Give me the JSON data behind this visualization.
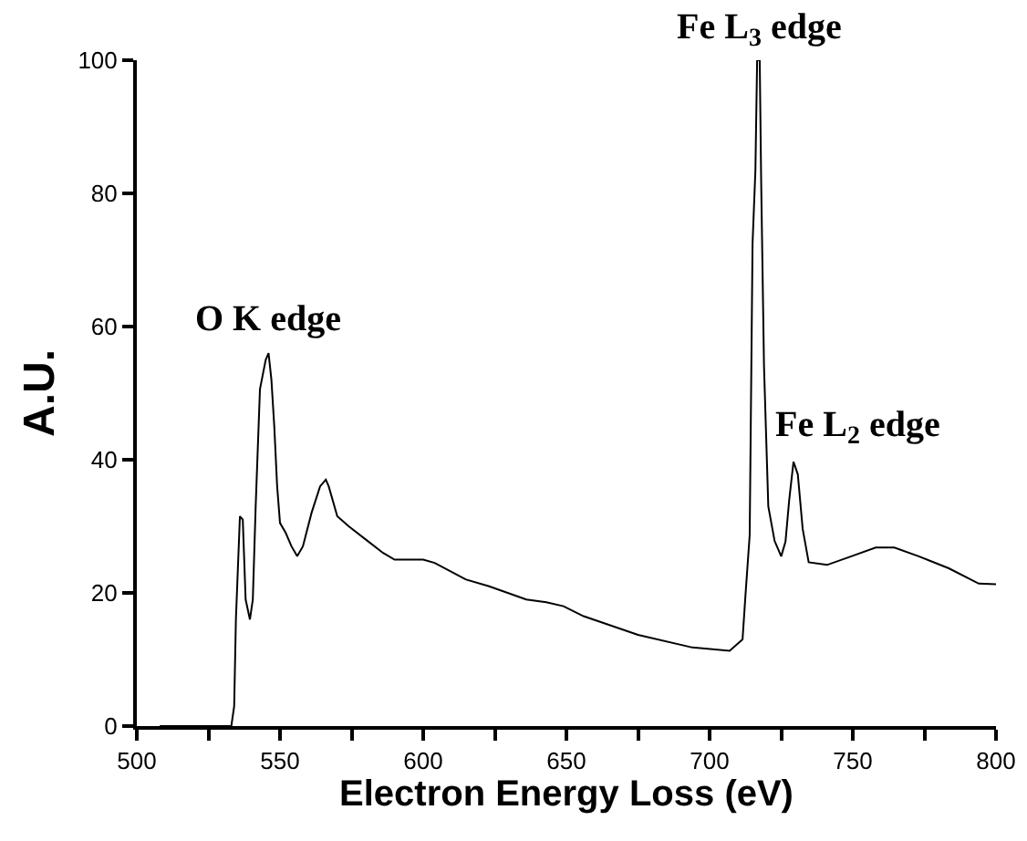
{
  "chart_data": {
    "type": "line",
    "xlabel": "Electron Energy Loss (eV)",
    "ylabel": "A.U.",
    "x": [
      508,
      533,
      534,
      534.6,
      536,
      537,
      538,
      539.5,
      540.5,
      541.5,
      543,
      545,
      546,
      547,
      548,
      549,
      550,
      552,
      554,
      556,
      558,
      561,
      564,
      566,
      567,
      570,
      574,
      580,
      586,
      590,
      600,
      604,
      615,
      623,
      636,
      643,
      649,
      656,
      675,
      694,
      707,
      711.5,
      712.5,
      714,
      715,
      716,
      716.6,
      717.5,
      718,
      719,
      720.5,
      722.7,
      725,
      726.5,
      727.8,
      729.3,
      730.8,
      732.5,
      734.6,
      741,
      749.5,
      758,
      764.5,
      773,
      783.5,
      794,
      800
    ],
    "series": [
      {
        "color": "#000000",
        "values": [
          0,
          0,
          3,
          16,
          31.5,
          31,
          19,
          16,
          19,
          33,
          50.6,
          55,
          56,
          52,
          45,
          36,
          30.5,
          29,
          27,
          25.5,
          27,
          32,
          36,
          37,
          36,
          31.5,
          30,
          28,
          26,
          25,
          25,
          24.5,
          22,
          21,
          19,
          18.6,
          18,
          16.5,
          13.7,
          11.8,
          11.3,
          13,
          19.5,
          28.7,
          72.5,
          83.5,
          100,
          100,
          82,
          54,
          33,
          27.8,
          25.5,
          27.7,
          34,
          39.7,
          37.8,
          29.6,
          24.6,
          24.2,
          25.5,
          26.8,
          26.8,
          25.5,
          23.7,
          21.4,
          21.3
        ]
      }
    ],
    "xlim": [
      500,
      800
    ],
    "xticks": [
      500,
      {
        "value": 525,
        "label": null
      },
      550,
      {
        "value": 575,
        "label": null
      },
      600,
      {
        "value": 625,
        "label": null
      },
      650,
      {
        "value": 675,
        "label": null
      },
      700,
      {
        "value": 725,
        "label": null
      },
      750,
      {
        "value": 775,
        "label": null
      },
      800
    ],
    "ylim": [
      0,
      100
    ],
    "yticks": [
      0,
      20,
      40,
      60,
      80,
      100
    ],
    "annotations": [
      {
        "text": "O K edge",
        "x": 546,
        "y": 56
      },
      {
        "text": "Fe L$_{3}$ edge",
        "x": 717,
        "y": 100
      },
      {
        "text": "Fe L$_{2}$ edge",
        "x": 729.3,
        "y": 39.7
      }
    ]
  }
}
